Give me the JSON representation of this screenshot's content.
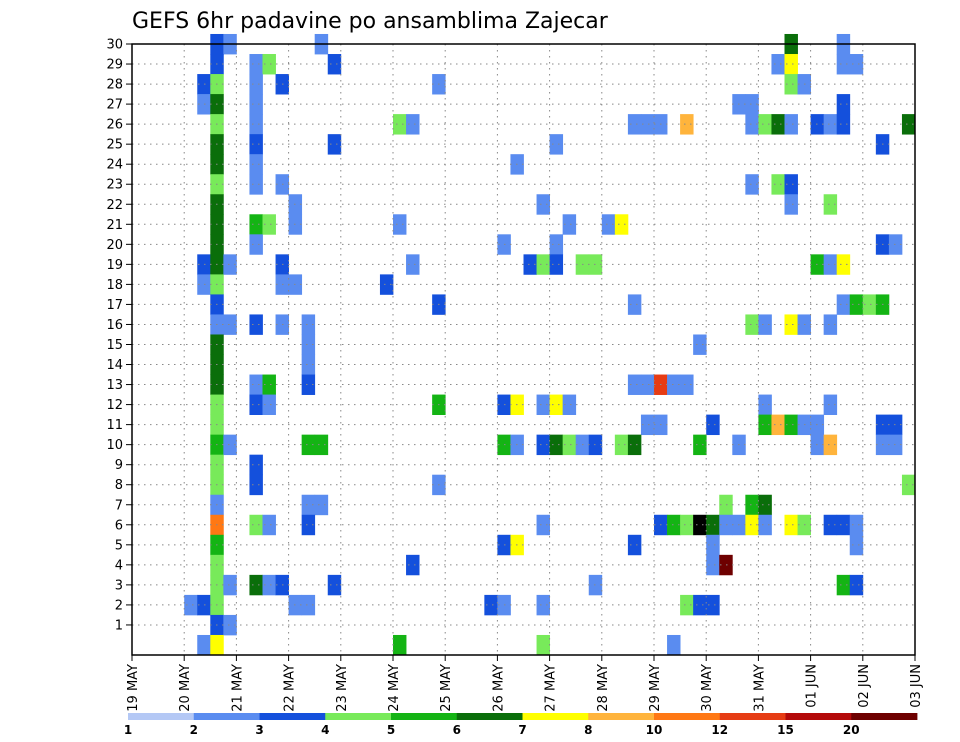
{
  "chart_data": {
    "type": "heatmap",
    "title": "GEFS 6hr padavine po ansamblima Zajecar",
    "xlabel": "",
    "ylabel": "",
    "x_ticks": [
      "19 MAY",
      "20 MAY",
      "21 MAY",
      "22 MAY",
      "23 MAY",
      "24 MAY",
      "25 MAY",
      "26 MAY",
      "27 MAY",
      "28 MAY",
      "29 MAY",
      "30 MAY",
      "31 MAY",
      "01 JUN",
      "02 JUN",
      "03 JUN"
    ],
    "y_ticks": [
      "1",
      "2",
      "3",
      "4",
      "5",
      "6",
      "7",
      "8",
      "9",
      "10",
      "11",
      "12",
      "13",
      "14",
      "15",
      "16",
      "17",
      "18",
      "19",
      "20",
      "21",
      "22",
      "23",
      "24",
      "25",
      "26",
      "27",
      "28",
      "29",
      "30"
    ],
    "y_range": [
      0,
      30
    ],
    "grid": true,
    "colorbar": {
      "labels": [
        "1",
        "2",
        "3",
        "4",
        "5",
        "6",
        "7",
        "8",
        "10",
        "12",
        "15",
        "20"
      ],
      "colors": [
        "#b4c8f5",
        "#5a8cf0",
        "#1450dc",
        "#78ea5a",
        "#14b414",
        "#0a6e0a",
        "#ffff00",
        "#ffb43c",
        "#ff7814",
        "#e63c14",
        "#b40a0a",
        "#6e0000"
      ]
    },
    "cells": [
      [
        1.5,
        30,
        2
      ],
      [
        1.75,
        30,
        1
      ],
      [
        3.5,
        30,
        1
      ],
      [
        12.5,
        30,
        5
      ],
      [
        13.5,
        30,
        1
      ],
      [
        1.5,
        29,
        2
      ],
      [
        2.25,
        29,
        1
      ],
      [
        2.5,
        29,
        3
      ],
      [
        3.75,
        29,
        2
      ],
      [
        12.25,
        29,
        1
      ],
      [
        12.5,
        29,
        6
      ],
      [
        13.5,
        29,
        1
      ],
      [
        13.75,
        29,
        1
      ],
      [
        1.25,
        28,
        2
      ],
      [
        1.5,
        28,
        3
      ],
      [
        2.25,
        28,
        1
      ],
      [
        2.75,
        28,
        2
      ],
      [
        5.75,
        28,
        1
      ],
      [
        12.5,
        28,
        3
      ],
      [
        12.75,
        28,
        1
      ],
      [
        1.25,
        27,
        1
      ],
      [
        1.5,
        27,
        5
      ],
      [
        2.25,
        27,
        1
      ],
      [
        11.5,
        27,
        1
      ],
      [
        11.75,
        27,
        1
      ],
      [
        13.5,
        27,
        2
      ],
      [
        1.5,
        26,
        3
      ],
      [
        2.25,
        26,
        1
      ],
      [
        5,
        26,
        3
      ],
      [
        5.25,
        26,
        1
      ],
      [
        9.5,
        26,
        1
      ],
      [
        9.75,
        26,
        1
      ],
      [
        10,
        26,
        1
      ],
      [
        10.5,
        26,
        7
      ],
      [
        11.75,
        26,
        1
      ],
      [
        12,
        26,
        3
      ],
      [
        12.25,
        26,
        5
      ],
      [
        12.5,
        26,
        1
      ],
      [
        13,
        26,
        2
      ],
      [
        13.25,
        26,
        1
      ],
      [
        13.5,
        26,
        2
      ],
      [
        14.75,
        26,
        5
      ],
      [
        1.5,
        25,
        5
      ],
      [
        2.25,
        25,
        2
      ],
      [
        3.75,
        25,
        2
      ],
      [
        8,
        25,
        1
      ],
      [
        14.25,
        25,
        2
      ],
      [
        1.5,
        24,
        5
      ],
      [
        2.25,
        24,
        1
      ],
      [
        7.25,
        24,
        1
      ],
      [
        1.5,
        23,
        3
      ],
      [
        2.25,
        23,
        1
      ],
      [
        2.75,
        23,
        1
      ],
      [
        11.75,
        23,
        1
      ],
      [
        12.25,
        23,
        3
      ],
      [
        12.5,
        23,
        2
      ],
      [
        1.5,
        22,
        5
      ],
      [
        3,
        22,
        1
      ],
      [
        7.75,
        22,
        1
      ],
      [
        12.5,
        22,
        1
      ],
      [
        13.25,
        22,
        3
      ],
      [
        1.5,
        21,
        5
      ],
      [
        2.25,
        21,
        4
      ],
      [
        2.5,
        21,
        3
      ],
      [
        3,
        21,
        1
      ],
      [
        5,
        21,
        1
      ],
      [
        8.25,
        21,
        1
      ],
      [
        9,
        21,
        1
      ],
      [
        9.25,
        21,
        6
      ],
      [
        1.5,
        20,
        5
      ],
      [
        2.25,
        20,
        1
      ],
      [
        7,
        20,
        1
      ],
      [
        8,
        20,
        1
      ],
      [
        14.25,
        20,
        2
      ],
      [
        14.5,
        20,
        1
      ],
      [
        1.25,
        19,
        2
      ],
      [
        1.5,
        19,
        5
      ],
      [
        1.75,
        19,
        1
      ],
      [
        2.75,
        19,
        2
      ],
      [
        5.25,
        19,
        1
      ],
      [
        7.5,
        19,
        2
      ],
      [
        7.75,
        19,
        3
      ],
      [
        8,
        19,
        2
      ],
      [
        8.5,
        19,
        3
      ],
      [
        8.75,
        19,
        3
      ],
      [
        13,
        19,
        4
      ],
      [
        13.25,
        19,
        1
      ],
      [
        13.5,
        19,
        6
      ],
      [
        1.25,
        18,
        1
      ],
      [
        1.5,
        18,
        3
      ],
      [
        2.75,
        18,
        1
      ],
      [
        3,
        18,
        1
      ],
      [
        4.75,
        18,
        2
      ],
      [
        1.5,
        17,
        2
      ],
      [
        5.75,
        17,
        2
      ],
      [
        9.5,
        17,
        1
      ],
      [
        13.5,
        17,
        1
      ],
      [
        13.75,
        17,
        4
      ],
      [
        14,
        17,
        3
      ],
      [
        14.25,
        17,
        4
      ],
      [
        1.5,
        16,
        1
      ],
      [
        1.75,
        16,
        1
      ],
      [
        2.25,
        16,
        2
      ],
      [
        2.75,
        16,
        1
      ],
      [
        3.25,
        16,
        1
      ],
      [
        11.75,
        16,
        3
      ],
      [
        12,
        16,
        1
      ],
      [
        12.5,
        16,
        6
      ],
      [
        12.75,
        16,
        1
      ],
      [
        13.25,
        16,
        1
      ],
      [
        1.5,
        15,
        5
      ],
      [
        3.25,
        15,
        1
      ],
      [
        10.75,
        15,
        1
      ],
      [
        1.5,
        14,
        5
      ],
      [
        3.25,
        14,
        1
      ],
      [
        1.5,
        13,
        5
      ],
      [
        2.25,
        13,
        1
      ],
      [
        2.5,
        13,
        4
      ],
      [
        3.25,
        13,
        2
      ],
      [
        9.5,
        13,
        1
      ],
      [
        9.75,
        13,
        1
      ],
      [
        10,
        13,
        9
      ],
      [
        10.25,
        13,
        1
      ],
      [
        10.5,
        13,
        1
      ],
      [
        1.5,
        12,
        3
      ],
      [
        2.25,
        12,
        2
      ],
      [
        2.5,
        12,
        1
      ],
      [
        5.75,
        12,
        4
      ],
      [
        7,
        12,
        2
      ],
      [
        7.25,
        12,
        6
      ],
      [
        7.75,
        12,
        1
      ],
      [
        8,
        12,
        6
      ],
      [
        8.25,
        12,
        1
      ],
      [
        12,
        12,
        1
      ],
      [
        13.25,
        12,
        1
      ],
      [
        1.5,
        11,
        3
      ],
      [
        9.75,
        11,
        1
      ],
      [
        10,
        11,
        1
      ],
      [
        11,
        11,
        2
      ],
      [
        12,
        11,
        4
      ],
      [
        12.25,
        11,
        7
      ],
      [
        12.5,
        11,
        4
      ],
      [
        12.75,
        11,
        1
      ],
      [
        13,
        11,
        1
      ],
      [
        14.25,
        11,
        2
      ],
      [
        14.5,
        11,
        2
      ],
      [
        1.5,
        10,
        4
      ],
      [
        1.75,
        10,
        1
      ],
      [
        3.25,
        10,
        4
      ],
      [
        3.5,
        10,
        4
      ],
      [
        7,
        10,
        4
      ],
      [
        7.25,
        10,
        1
      ],
      [
        7.75,
        10,
        2
      ],
      [
        8,
        10,
        5
      ],
      [
        8.25,
        10,
        3
      ],
      [
        8.5,
        10,
        1
      ],
      [
        8.75,
        10,
        2
      ],
      [
        9.25,
        10,
        3
      ],
      [
        9.5,
        10,
        5
      ],
      [
        10.75,
        10,
        4
      ],
      [
        11.5,
        10,
        1
      ],
      [
        13,
        10,
        1
      ],
      [
        13.25,
        10,
        7
      ],
      [
        14.25,
        10,
        1
      ],
      [
        14.5,
        10,
        1
      ],
      [
        1.5,
        9,
        3
      ],
      [
        2.25,
        9,
        2
      ],
      [
        1.5,
        8,
        3
      ],
      [
        2.25,
        8,
        2
      ],
      [
        5.75,
        8,
        1
      ],
      [
        14.75,
        8,
        3
      ],
      [
        1.5,
        7,
        1
      ],
      [
        3.25,
        7,
        1
      ],
      [
        3.5,
        7,
        1
      ],
      [
        11.25,
        7,
        3
      ],
      [
        11.75,
        7,
        4
      ],
      [
        12,
        7,
        5
      ],
      [
        1.5,
        6,
        8
      ],
      [
        2.25,
        6,
        3
      ],
      [
        2.5,
        6,
        1
      ],
      [
        3.25,
        6,
        2
      ],
      [
        7.75,
        6,
        1
      ],
      [
        10,
        6,
        2
      ],
      [
        10.25,
        6,
        4
      ],
      [
        10.5,
        6,
        3
      ],
      [
        10.75,
        6,
        12
      ],
      [
        11,
        6,
        5
      ],
      [
        11.25,
        6,
        1
      ],
      [
        11.5,
        6,
        1
      ],
      [
        11.75,
        6,
        6
      ],
      [
        12,
        6,
        1
      ],
      [
        12.5,
        6,
        6
      ],
      [
        12.75,
        6,
        3
      ],
      [
        13.25,
        6,
        2
      ],
      [
        13.5,
        6,
        2
      ],
      [
        13.75,
        6,
        1
      ],
      [
        1.5,
        5,
        4
      ],
      [
        7,
        5,
        2
      ],
      [
        7.25,
        5,
        6
      ],
      [
        9.5,
        5,
        2
      ],
      [
        11,
        5,
        1
      ],
      [
        13.75,
        5,
        1
      ],
      [
        1.5,
        4,
        3
      ],
      [
        5.25,
        4,
        2
      ],
      [
        11,
        4,
        1
      ],
      [
        11.25,
        4,
        11
      ],
      [
        1.5,
        3,
        3
      ],
      [
        1.75,
        3,
        1
      ],
      [
        2.25,
        3,
        5
      ],
      [
        2.5,
        3,
        1
      ],
      [
        2.75,
        3,
        2
      ],
      [
        3.75,
        3,
        2
      ],
      [
        8.75,
        3,
        1
      ],
      [
        13.5,
        3,
        4
      ],
      [
        13.75,
        3,
        2
      ],
      [
        1,
        2,
        1
      ],
      [
        1.25,
        2,
        2
      ],
      [
        1.5,
        2,
        3
      ],
      [
        3,
        2,
        1
      ],
      [
        3.25,
        2,
        1
      ],
      [
        6.75,
        2,
        2
      ],
      [
        7,
        2,
        1
      ],
      [
        7.75,
        2,
        1
      ],
      [
        10.5,
        2,
        3
      ],
      [
        10.75,
        2,
        2
      ],
      [
        11,
        2,
        2
      ],
      [
        1.5,
        1,
        2
      ],
      [
        1.75,
        1,
        1
      ],
      [
        1.25,
        0,
        1
      ],
      [
        1.5,
        0,
        6
      ],
      [
        5,
        0,
        4
      ],
      [
        7.75,
        0,
        3
      ],
      [
        10.25,
        0,
        1
      ]
    ]
  }
}
